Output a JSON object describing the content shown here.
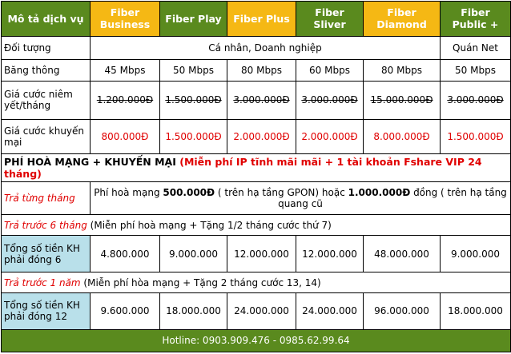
{
  "header": {
    "label": "Mô tả dịch vụ",
    "plans": [
      {
        "name": "Fiber Business",
        "color": "#f5b814"
      },
      {
        "name": "Fiber Play",
        "color": "#5a8a1e"
      },
      {
        "name": "Fiber Plus",
        "color": "#f5b814"
      },
      {
        "name": "Fiber Sliver",
        "color": "#5a8a1e"
      },
      {
        "name": "Fiber Diamond",
        "color": "#f5b814"
      },
      {
        "name": "Fiber Public +",
        "color": "#5a8a1e"
      }
    ]
  },
  "rows": {
    "audience": {
      "label": "Đối tượng",
      "value_main": "Cá nhân, Doanh nghiệp",
      "value_public": "Quán Net"
    },
    "bandwidth": {
      "label": "Băng thông",
      "values": [
        "45 Mbps",
        "50 Mbps",
        "80 Mbps",
        "60 Mbps",
        "80 Mbps",
        "50 Mbps"
      ]
    },
    "list_price": {
      "label": "Giá cước niêm yết/tháng",
      "values": [
        "1.200.000Đ",
        "1.500.000Đ",
        "3.000.000Đ",
        "3.000.000Đ",
        "15.000.000Đ",
        "3.000.000Đ"
      ]
    },
    "promo_price": {
      "label": "Giá cước khuyến mại",
      "values": [
        "800.000Đ",
        "1.500.000Đ",
        "2.000.000Đ",
        "2.000.000Đ",
        "8.000.000Đ",
        "1.500.000Đ"
      ]
    }
  },
  "promo_banner": {
    "text_black": "PHÍ HOÀ MẠNG + KHUYẾN MẠI",
    "text_red": "(Miễn phí IP tĩnh mãi mãi + 1 tài khoản Fshare VIP 24 tháng)"
  },
  "monthly": {
    "label": "Trả từng tháng",
    "part1": "Phí hoà mạng ",
    "amount1": "500.000Đ",
    "part2": " ( trên hạ tầng GPON) hoặc ",
    "amount2": "1.000.000Đ",
    "part3": " đồng ( trên hạ tầng quang cũ"
  },
  "six_months": {
    "label": "Trả trước 6 tháng",
    "note": " (Miễn phí hoà mạng + Tặng 1/2 tháng cước thứ 7)",
    "total_label": "Tổng số tiền KH phải đóng 6",
    "values": [
      "4.800.000",
      "9.000.000",
      "12.000.000",
      "12.000.000",
      "48.000.000",
      "9.000.000"
    ]
  },
  "one_year": {
    "label": "Trả trước 1 năm",
    "note": "  (Miễn phí hòa mạng + Tặng 2 tháng cước 13, 14)",
    "total_label": "Tổng số tiền KH phải đóng 12",
    "values": [
      "9.600.000",
      "18.000.000",
      "24.000.000",
      "24.000.000",
      "96.000.000",
      "18.000.000"
    ]
  },
  "footer": {
    "hotline": "Hotline: 0903.909.476 - 0985.62.99.64"
  }
}
